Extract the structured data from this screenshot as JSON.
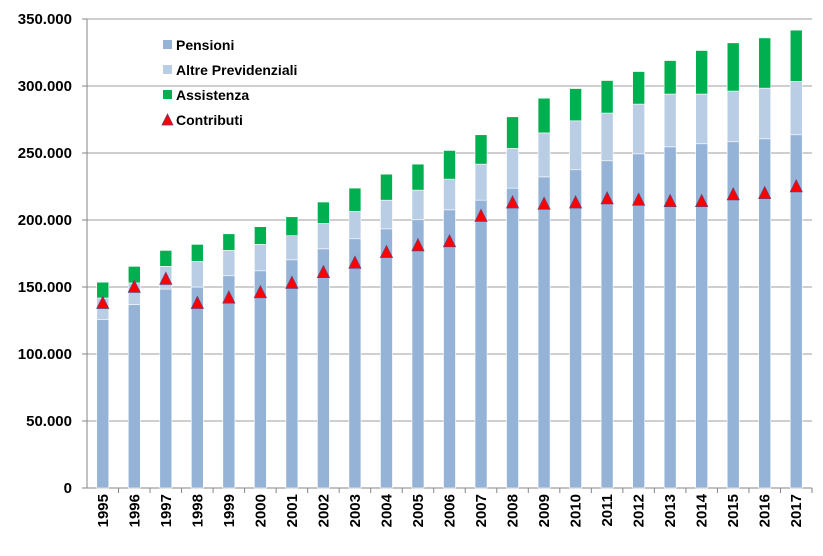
{
  "chart_data": {
    "type": "bar",
    "stacked": true,
    "title": "",
    "xlabel": "",
    "ylabel": "",
    "ylim": [
      0,
      350000
    ],
    "y_ticks": [
      "0",
      "50.000",
      "100.000",
      "150.000",
      "200.000",
      "250.000",
      "300.000",
      "350.000"
    ],
    "grid": true,
    "legend_position": "top-left",
    "categories": [
      "1995",
      "1996",
      "1997",
      "1998",
      "1999",
      "2000",
      "2001",
      "2002",
      "2003",
      "2004",
      "2005",
      "2006",
      "2007",
      "2008",
      "2009",
      "2010",
      "2011",
      "2012",
      "2013",
      "2014",
      "2015",
      "2016",
      "2017"
    ],
    "series": [
      {
        "name": "Pensioni",
        "kind": "bar",
        "color": "#95b3d7",
        "values": [
          125600,
          137000,
          148500,
          150000,
          158400,
          162100,
          170300,
          178500,
          186000,
          193400,
          200200,
          207600,
          214800,
          223800,
          232200,
          237500,
          244200,
          249400,
          254600,
          256900,
          258400,
          260600,
          263600
        ]
      },
      {
        "name": "Altre Previdenziali",
        "kind": "bar",
        "color": "#b9cde5",
        "values": [
          16200,
          16000,
          16900,
          19100,
          18900,
          19700,
          18000,
          18900,
          20400,
          21400,
          22100,
          22900,
          26900,
          29600,
          32800,
          36500,
          35600,
          37100,
          39400,
          37100,
          37800,
          37800,
          39800
        ]
      },
      {
        "name": "Assistenza",
        "kind": "bar",
        "color": "#00b050",
        "values": [
          11800,
          12400,
          11900,
          12700,
          12400,
          13200,
          14100,
          16000,
          17400,
          19400,
          19400,
          21400,
          21900,
          23600,
          25900,
          24100,
          24300,
          24300,
          25000,
          32500,
          36000,
          37500,
          38300
        ]
      },
      {
        "name": "Contributi",
        "kind": "marker-triangle",
        "color": "#ff0000",
        "values": [
          137000,
          149000,
          155000,
          137000,
          141000,
          145000,
          152000,
          160000,
          167000,
          175000,
          180000,
          183000,
          202000,
          212000,
          211000,
          212000,
          215000,
          214000,
          213000,
          213000,
          218000,
          219000,
          224000
        ]
      }
    ]
  }
}
